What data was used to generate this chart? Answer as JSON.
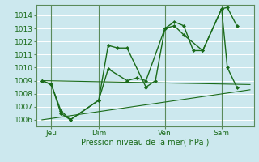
{
  "bg_color": "#cce8ee",
  "grid_color": "#ffffff",
  "line_color": "#1a6b1a",
  "xlabel": "Pression niveau de la mer( hPa )",
  "ylim": [
    1005.5,
    1014.8
  ],
  "yticks": [
    1006,
    1007,
    1008,
    1009,
    1010,
    1011,
    1012,
    1013,
    1014
  ],
  "xlim": [
    -0.3,
    11.2
  ],
  "xtick_labels": [
    "Jeu",
    "Dim",
    "Ven",
    "Sam"
  ],
  "xtick_positions": [
    0.5,
    3.0,
    6.5,
    9.5
  ],
  "vline_positions": [
    0.5,
    3.0,
    6.5,
    9.5
  ],
  "series1_x": [
    0.0,
    0.5,
    1.0,
    1.5,
    3.0,
    3.5,
    4.0,
    4.5,
    5.5,
    6.0,
    6.5,
    7.0,
    7.5,
    8.0,
    8.5,
    9.5,
    9.8,
    10.3
  ],
  "series1_y": [
    1009.0,
    1008.7,
    1006.5,
    1006.0,
    1007.5,
    1011.7,
    1011.5,
    1011.5,
    1008.5,
    1009.0,
    1013.0,
    1013.5,
    1013.2,
    1011.3,
    1011.3,
    1014.5,
    1014.6,
    1013.2
  ],
  "series2_x": [
    0.0,
    0.5,
    1.0,
    1.5,
    3.0,
    3.5,
    4.5,
    5.0,
    5.5,
    6.5,
    7.0,
    7.5,
    8.5,
    9.5,
    9.8,
    10.3
  ],
  "series2_y": [
    1009.0,
    1008.7,
    1006.7,
    1006.0,
    1007.5,
    1009.9,
    1009.0,
    1009.2,
    1009.0,
    1013.0,
    1013.2,
    1012.5,
    1011.3,
    1014.5,
    1010.0,
    1008.5
  ],
  "line3_x": [
    0.0,
    11.0
  ],
  "line3_y": [
    1009.0,
    1008.7
  ],
  "line4_x": [
    0.0,
    11.0
  ],
  "line4_y": [
    1006.0,
    1008.3
  ]
}
